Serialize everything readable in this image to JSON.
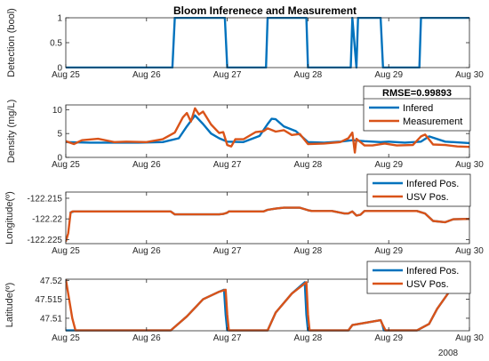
{
  "title": "Bloom Inferenece and Measurement",
  "year_label": "2008",
  "colors": {
    "series1": "#0072bd",
    "series2": "#d95319",
    "axes": "#262626"
  },
  "chart_data": [
    {
      "type": "line",
      "ylabel": "Detection (bool)",
      "xlim": [
        25,
        30
      ],
      "ylim": [
        0,
        1
      ],
      "xticks": [
        25,
        26,
        27,
        28,
        29,
        30
      ],
      "xtick_labels": [
        "Aug 25",
        "Aug 26",
        "Aug 27",
        "Aug 28",
        "Aug 29",
        "Aug 30"
      ],
      "yticks": [
        0,
        0.5,
        1
      ],
      "ytick_labels": [
        "0",
        "0.5",
        "1"
      ],
      "legend": null,
      "series": [
        {
          "color": "#0072bd",
          "x": [
            25,
            26.32,
            26.35,
            26.97,
            27.0,
            27.48,
            27.5,
            27.98,
            28.0,
            28.53,
            28.55,
            28.6,
            28.62,
            28.9,
            28.93,
            29.38,
            29.4,
            30
          ],
          "y": [
            0,
            0,
            1,
            1,
            0,
            0,
            1,
            1,
            0,
            0,
            1,
            0,
            1,
            1,
            0,
            0,
            1,
            1
          ]
        }
      ]
    },
    {
      "type": "line",
      "ylabel": "Density (mg/L)",
      "xlim": [
        25,
        30
      ],
      "ylim": [
        0,
        11
      ],
      "xticks": [
        25,
        26,
        27,
        28,
        29,
        30
      ],
      "xtick_labels": [
        "Aug 25",
        "Aug 26",
        "Aug 27",
        "Aug 28",
        "Aug 29",
        "Aug 30"
      ],
      "yticks": [
        0,
        5,
        10
      ],
      "ytick_labels": [
        "0",
        "5",
        "10"
      ],
      "legend": {
        "title": "RMSE=0.99893",
        "entries": [
          "Infered",
          "Measurement"
        ],
        "location": "top-right"
      },
      "series": [
        {
          "name": "Infered",
          "color": "#0072bd",
          "x": [
            25,
            25.3,
            25.6,
            25.9,
            26.2,
            26.4,
            26.5,
            26.6,
            26.7,
            26.8,
            26.9,
            27.0,
            27.2,
            27.4,
            27.5,
            27.55,
            27.6,
            27.7,
            27.85,
            28.0,
            28.2,
            28.4,
            28.55,
            28.7,
            28.9,
            29.0,
            29.2,
            29.4,
            29.5,
            29.7,
            30
          ],
          "y": [
            3.2,
            3.1,
            3.1,
            3.1,
            3.2,
            4,
            6.5,
            8.8,
            7,
            5,
            4,
            3.3,
            3.2,
            4.5,
            7,
            8.1,
            8,
            6.5,
            5.5,
            3.2,
            3.1,
            3.3,
            3.6,
            3.4,
            3.2,
            3.3,
            3.1,
            3.3,
            4.4,
            3.3,
            3.0
          ]
        },
        {
          "name": "Measurement",
          "color": "#d95319",
          "x": [
            25,
            25.1,
            25.2,
            25.4,
            25.6,
            25.75,
            26.0,
            26.2,
            26.35,
            26.45,
            26.5,
            26.55,
            26.6,
            26.65,
            26.7,
            26.8,
            26.9,
            26.95,
            27.0,
            27.05,
            27.1,
            27.2,
            27.35,
            27.45,
            27.5,
            27.6,
            27.7,
            27.8,
            27.9,
            28.0,
            28.2,
            28.4,
            28.5,
            28.55,
            28.58,
            28.6,
            28.7,
            28.8,
            28.95,
            29.1,
            29.3,
            29.4,
            29.45,
            29.55,
            29.7,
            29.85,
            30
          ],
          "y": [
            3.4,
            2.8,
            3.6,
            3.9,
            3.2,
            3.3,
            3.2,
            3.8,
            5.2,
            8.4,
            9.3,
            7.5,
            10.3,
            9,
            9.6,
            6.9,
            5.1,
            5.3,
            2.6,
            2.3,
            3.8,
            3.8,
            5.3,
            5.5,
            6.1,
            5.4,
            5.7,
            4.7,
            4.9,
            2.8,
            2.9,
            3.2,
            4.0,
            5.2,
            1.0,
            3.9,
            2.5,
            2.5,
            2.9,
            2.5,
            2.6,
            4.4,
            4.8,
            2.7,
            2.6,
            2.3,
            2.2
          ]
        }
      ]
    },
    {
      "type": "line",
      "ylabel": "Longitude(º)",
      "xlim": [
        25,
        30
      ],
      "ylim": [
        -122.226,
        -122.2135
      ],
      "xticks": [
        25,
        26,
        27,
        28,
        29,
        30
      ],
      "xtick_labels": [
        "Aug 25",
        "Aug 26",
        "Aug 27",
        "Aug 28",
        "Aug 29",
        "Aug 30"
      ],
      "yticks": [
        -122.225,
        -122.22,
        -122.215
      ],
      "ytick_labels": [
        "-122.225",
        "-122.22",
        "-122.215"
      ],
      "legend": {
        "title": "",
        "entries": [
          "Infered Pos.",
          "USV Pos."
        ],
        "location": "top-right"
      },
      "series": [
        {
          "name": "Infered Pos.",
          "color": "#0072bd",
          "x": [
            25.05,
            25.1,
            25.5,
            26.0,
            26.3,
            26.35,
            26.9,
            26.95,
            27.0,
            27.02,
            27.1,
            27.45,
            27.5,
            27.6,
            27.7,
            27.9,
            28.0,
            28.05,
            28.3,
            28.45,
            28.5,
            28.55,
            28.6,
            28.65,
            28.7,
            28.9,
            29.0,
            29.35,
            29.45,
            29.55,
            29.7,
            29.8,
            30.0
          ],
          "y": [
            -122.2185,
            -122.2182,
            -122.2182,
            -122.2182,
            -122.2182,
            -122.2189,
            -122.2189,
            -122.2188,
            -122.2185,
            -122.2182,
            -122.2182,
            -122.2182,
            -122.2178,
            -122.2175,
            -122.2173,
            -122.2173,
            -122.2179,
            -122.2181,
            -122.2181,
            -122.2187,
            -122.2187,
            -122.2182,
            -122.2192,
            -122.219,
            -122.2181,
            -122.2181,
            -122.2181,
            -122.2181,
            -122.2187,
            -122.2205,
            -122.2208,
            -122.2201,
            -122.22
          ]
        },
        {
          "name": "USV Pos.",
          "color": "#d95319",
          "x": [
            25.0,
            25.03,
            25.06,
            25.08,
            25.1,
            25.5,
            26.0,
            26.3,
            26.35,
            26.9,
            26.95,
            27.0,
            27.02,
            27.1,
            27.45,
            27.5,
            27.6,
            27.7,
            27.9,
            28.0,
            28.05,
            28.3,
            28.45,
            28.5,
            28.55,
            28.6,
            28.65,
            28.7,
            28.9,
            29.0,
            29.35,
            29.45,
            29.55,
            29.7,
            29.8,
            30.0
          ],
          "y": [
            -122.2255,
            -122.2235,
            -122.2185,
            -122.2182,
            -122.2182,
            -122.2182,
            -122.2182,
            -122.2182,
            -122.2189,
            -122.2189,
            -122.2188,
            -122.2185,
            -122.2182,
            -122.2182,
            -122.2182,
            -122.2178,
            -122.2175,
            -122.2173,
            -122.2173,
            -122.2179,
            -122.2181,
            -122.2181,
            -122.2187,
            -122.2187,
            -122.2182,
            -122.2192,
            -122.219,
            -122.2181,
            -122.2181,
            -122.2181,
            -122.2181,
            -122.2187,
            -122.2205,
            -122.2208,
            -122.2201,
            -122.22
          ]
        }
      ]
    },
    {
      "type": "line",
      "ylabel": "Latitude(º)",
      "xlim": [
        25,
        30
      ],
      "ylim": [
        47.5067,
        47.5203
      ],
      "xticks": [
        25,
        26,
        27,
        28,
        29,
        30
      ],
      "xtick_labels": [
        "Aug 25",
        "Aug 26",
        "Aug 27",
        "Aug 28",
        "Aug 29",
        "Aug 30"
      ],
      "yticks": [
        47.51,
        47.515,
        47.52
      ],
      "ytick_labels": [
        "47.51",
        "47.515",
        "47.52"
      ],
      "legend": {
        "title": "",
        "entries": [
          "Infered Pos.",
          "USV Pos."
        ],
        "location": "top-right"
      },
      "series": [
        {
          "name": "Infered Pos.",
          "color": "#0072bd",
          "x": [
            25.0,
            25.02,
            25.3,
            26.0,
            26.3,
            26.5,
            26.7,
            26.9,
            26.96,
            26.98,
            27.0,
            27.5,
            27.6,
            27.8,
            27.96,
            27.98,
            28.0,
            28.5,
            28.55,
            28.9,
            28.92,
            28.94,
            29.0,
            29.2,
            29.35,
            29.5,
            29.6,
            29.8,
            30.0
          ],
          "y": [
            47.5068,
            47.5068,
            47.5068,
            47.5068,
            47.5068,
            47.5105,
            47.515,
            47.517,
            47.5175,
            47.511,
            47.5068,
            47.5068,
            47.5115,
            47.5165,
            47.5195,
            47.511,
            47.5068,
            47.5068,
            47.5082,
            47.5095,
            47.5085,
            47.5068,
            47.5068,
            47.5068,
            47.5068,
            47.5085,
            47.5125,
            47.5185,
            47.5203
          ]
        },
        {
          "name": "USV Pos.",
          "color": "#d95319",
          "x": [
            25.0,
            25.08,
            25.12,
            25.3,
            26.0,
            26.3,
            26.5,
            26.7,
            26.9,
            26.98,
            27.0,
            27.02,
            27.5,
            27.6,
            27.8,
            27.98,
            28.0,
            28.02,
            28.5,
            28.55,
            28.9,
            28.92,
            28.96,
            29.0,
            29.2,
            29.35,
            29.5,
            29.6,
            29.8,
            30.0
          ],
          "y": [
            47.5203,
            47.51,
            47.5068,
            47.5068,
            47.5068,
            47.5068,
            47.5105,
            47.515,
            47.517,
            47.5175,
            47.511,
            47.5068,
            47.5068,
            47.5115,
            47.5165,
            47.5195,
            47.511,
            47.5068,
            47.5068,
            47.5082,
            47.5095,
            47.5085,
            47.5068,
            47.5068,
            47.5068,
            47.5068,
            47.5085,
            47.5125,
            47.5185,
            47.5203
          ]
        }
      ]
    }
  ]
}
